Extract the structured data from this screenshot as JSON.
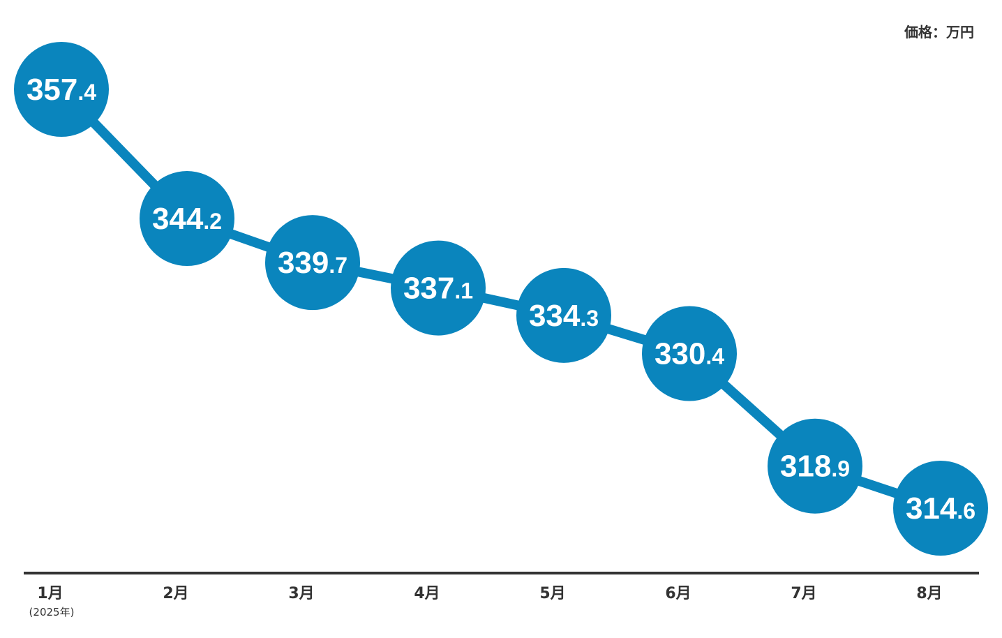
{
  "unit_label": "価格：万円",
  "colors": {
    "marker": "#0a85bd",
    "line": "#0a85bd",
    "axis": "#333333",
    "label_text": "#ffffff",
    "tick_text": "#333333"
  },
  "chart_data": {
    "type": "line",
    "title": "",
    "xlabel": "",
    "ylabel": "",
    "categories": [
      "1月",
      "2月",
      "3月",
      "4月",
      "5月",
      "6月",
      "7月",
      "8月"
    ],
    "category_notes": [
      "(2025年)",
      "",
      "",
      "",
      "",
      "",
      "",
      ""
    ],
    "values": [
      357.4,
      344.2,
      339.7,
      337.1,
      334.3,
      330.4,
      318.9,
      314.6
    ],
    "value_labels": [
      {
        "int": "357",
        "dec": ".4"
      },
      {
        "int": "344",
        "dec": ".2"
      },
      {
        "int": "339",
        "dec": ".7"
      },
      {
        "int": "337",
        "dec": ".1"
      },
      {
        "int": "334",
        "dec": ".3"
      },
      {
        "int": "330",
        "dec": ".4"
      },
      {
        "int": "318",
        "dec": ".9"
      },
      {
        "int": "314",
        "dec": ".6"
      }
    ],
    "grid": false,
    "legend": "none"
  }
}
